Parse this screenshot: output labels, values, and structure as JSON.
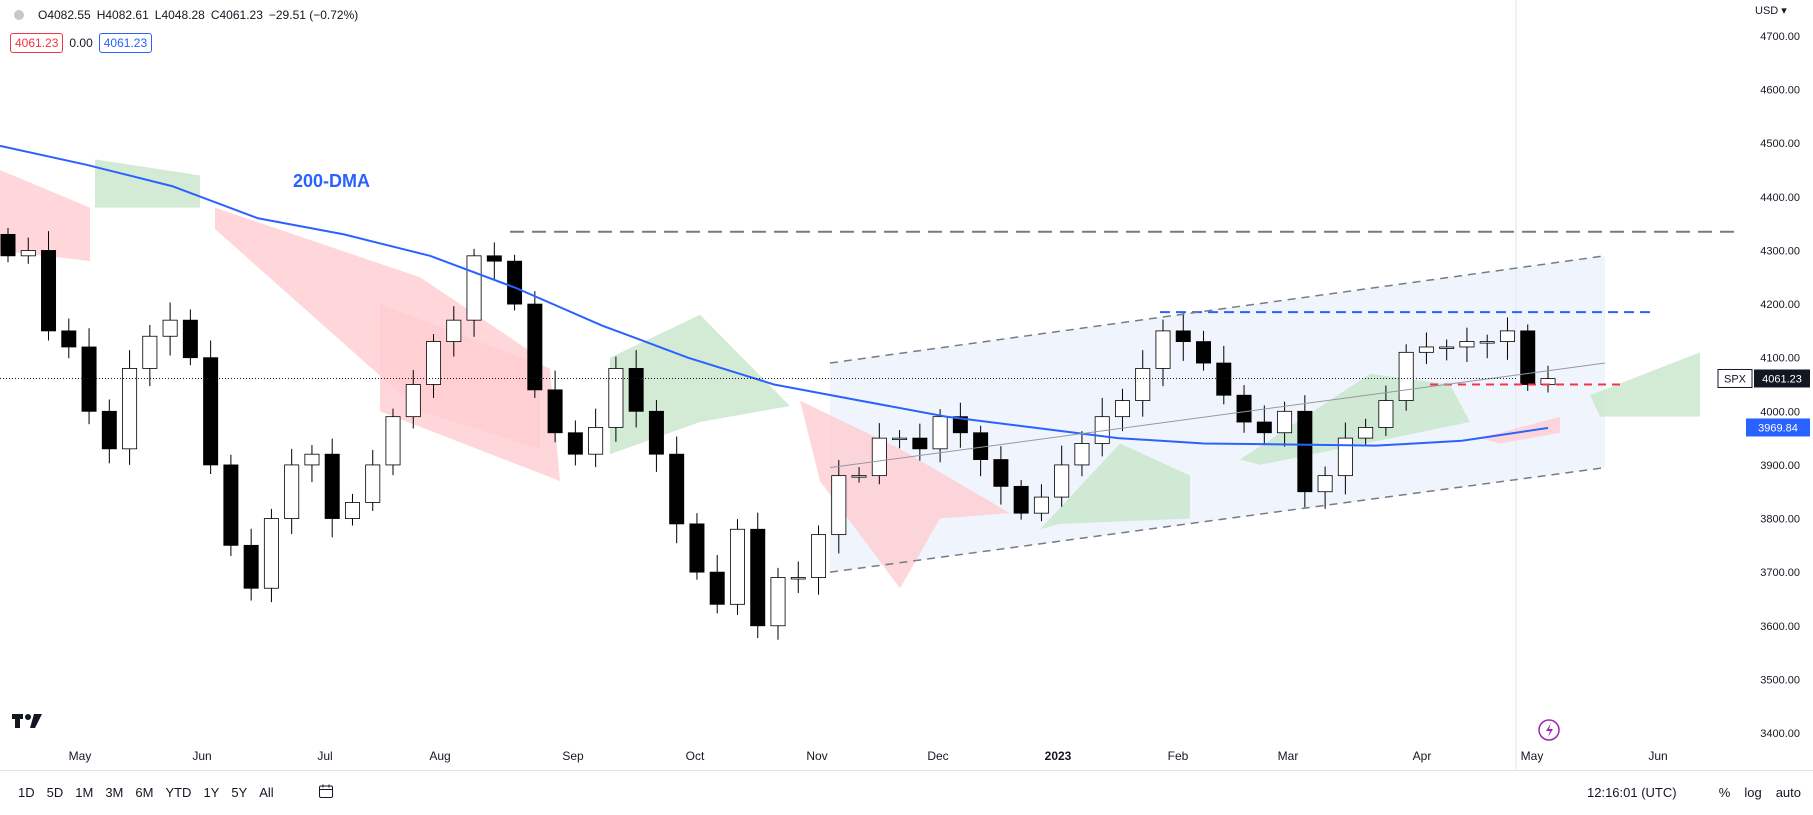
{
  "header": {
    "open": "O4082.55",
    "high": "H4082.61",
    "low": "L4048.28",
    "close": "C4061.23",
    "change": "−29.51 (−0.72%)",
    "badge_price": "4061.23",
    "badge_zero": "0.00",
    "badge_price2": "4061.23"
  },
  "currency": "USD",
  "price_tag": {
    "symbol": "SPX",
    "value": "4061.23"
  },
  "ma_tag": {
    "value": "3969.84"
  },
  "annotation": "200-DMA",
  "toolbar": {
    "ranges": [
      "1D",
      "5D",
      "1M",
      "3M",
      "6M",
      "YTD",
      "1Y",
      "5Y",
      "All"
    ],
    "time": "12:16:01 (UTC)",
    "pct": "%",
    "log": "log",
    "auto": "auto"
  },
  "colors": {
    "up": "#ffffff",
    "down": "#000000",
    "ma": "#2962ff",
    "cloud_green": "#c8e6c9",
    "cloud_red": "#ffcdd2",
    "channel": "#e3ecfb"
  },
  "chart_data": {
    "type": "candlestick",
    "symbol": "SPX",
    "y_ticks": [
      "4700.00",
      "4600.00",
      "4500.00",
      "4400.00",
      "4300.00",
      "4200.00",
      "4100.00",
      "4000.00",
      "3900.00",
      "3800.00",
      "3700.00",
      "3600.00",
      "3500.00",
      "3400.00"
    ],
    "ylim": [
      3400,
      4700
    ],
    "x_labels": [
      "May",
      "Jun",
      "Jul",
      "Aug",
      "Sep",
      "Oct",
      "Nov",
      "Dec",
      "2023",
      "Feb",
      "Mar",
      "Apr",
      "May",
      "Jun"
    ],
    "series": [
      {
        "name": "SPX",
        "closes": [
          4290,
          4300,
          4150,
          4120,
          4000,
          3930,
          4080,
          4140,
          4170,
          4100,
          3900,
          3750,
          3670,
          3800,
          3900,
          3920,
          3800,
          3830,
          3900,
          3990,
          4050,
          4130,
          4170,
          4290,
          4280,
          4200,
          4040,
          3960,
          3920,
          3970,
          4080,
          4000,
          3920,
          3790,
          3700,
          3640,
          3780,
          3600,
          3690,
          3690,
          3770,
          3880,
          3880,
          3950,
          3950,
          3930,
          3990,
          3960,
          3910,
          3860,
          3810,
          3840,
          3900,
          3940,
          3990,
          4020,
          4080,
          4150,
          4130,
          4090,
          4030,
          3980,
          3960,
          4000,
          3850,
          3880,
          3950,
          3970,
          4020,
          4110,
          4120,
          4120,
          4130,
          4130,
          4150,
          4050,
          4061
        ]
      },
      {
        "name": "200-DMA",
        "points": [
          4495,
          4460,
          4420,
          4360,
          4330,
          4290,
          4230,
          4160,
          4100,
          4050,
          4020,
          3990,
          3970,
          3950,
          3940,
          3938,
          3936,
          3945,
          3969
        ]
      }
    ],
    "cloud_segments": [
      "green",
      "red",
      "red",
      "green",
      "red",
      "green",
      "green",
      "red",
      "green"
    ],
    "resistance_level": 4335,
    "support_level": 4050,
    "recent_high_level": 4185
  }
}
